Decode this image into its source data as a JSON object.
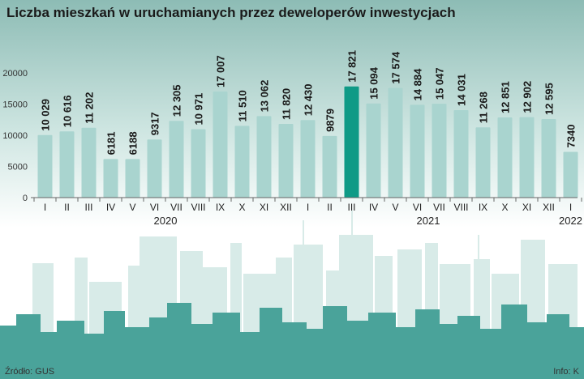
{
  "title": "Liczba mieszkań w uruchamianych przez deweloperów inwestycjach",
  "source": "Źródło: GUS",
  "credit": "Info: K",
  "colors": {
    "bar": "#a9d4cf",
    "highlight": "#0f9a86",
    "sky_top": "#7fb3ac",
    "skyline_back": "#d8ebe8",
    "skyline_front": "#4aa39a",
    "axis": "#666666"
  },
  "chart_data": {
    "type": "bar",
    "title": "Liczba mieszkań w uruchamianych przez deweloperów inwestycjach",
    "ylim": [
      0,
      20000
    ],
    "yticks": [
      0,
      5000,
      10000,
      15000,
      20000
    ],
    "grid": false,
    "highlight_index": 14,
    "categories": [
      "I",
      "II",
      "III",
      "IV",
      "V",
      "VI",
      "VII",
      "VIII",
      "IX",
      "X",
      "XI",
      "XII",
      "I",
      "II",
      "III",
      "IV",
      "V",
      "VI",
      "VII",
      "VIII",
      "IX",
      "X",
      "XI",
      "XII",
      "I"
    ],
    "years": [
      {
        "label": "2020",
        "from": 0,
        "to": 11
      },
      {
        "label": "2021",
        "from": 12,
        "to": 23
      },
      {
        "label": "2022",
        "from": 24,
        "to": 24
      }
    ],
    "values": [
      10029,
      10616,
      11202,
      6181,
      6188,
      9317,
      12305,
      10971,
      17007,
      11510,
      13062,
      11820,
      12430,
      9879,
      17821,
      15094,
      17574,
      14884,
      15047,
      14031,
      11268,
      12851,
      12902,
      12595,
      7340
    ],
    "labels": [
      "10 029",
      "10 616",
      "11 202",
      "6181",
      "6188",
      "9317",
      "12 305",
      "10 971",
      "17 007",
      "11 510",
      "13 062",
      "11 820",
      "12 430",
      "9879",
      "17 821",
      "15 094",
      "17 574",
      "14 884",
      "15 047",
      "14 031",
      "11 268",
      "12 851",
      "12 902",
      "12 595",
      "7340"
    ]
  }
}
